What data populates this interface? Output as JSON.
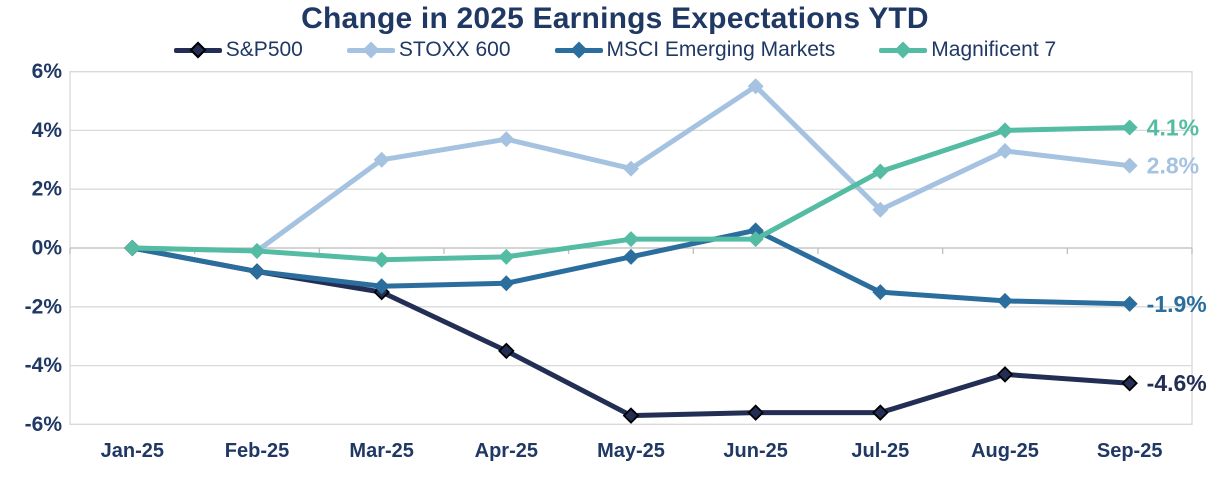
{
  "chart_data": {
    "type": "line",
    "title": "Change in 2025 Earnings Expectations YTD",
    "x": [
      "Jan-25",
      "Feb-25",
      "Mar-25",
      "Apr-25",
      "May-25",
      "Jun-25",
      "Jul-25",
      "Aug-25",
      "Sep-25"
    ],
    "series": [
      {
        "name": "S&P500",
        "color": "#232e54",
        "marker_outline": "#000000",
        "values": [
          0.0,
          -0.8,
          -1.5,
          -3.5,
          -5.7,
          -5.6,
          -5.6,
          -4.3,
          -4.6
        ],
        "end_label": "-4.6%"
      },
      {
        "name": "STOXX 600",
        "color": "#a6c2e1",
        "marker_outline": null,
        "values": [
          0.0,
          -0.1,
          3.0,
          3.7,
          2.7,
          5.5,
          1.3,
          3.3,
          2.8
        ],
        "end_label": "2.8%"
      },
      {
        "name": "MSCI Emerging Markets",
        "color": "#2b6e9e",
        "marker_outline": null,
        "values": [
          0.0,
          -0.8,
          -1.3,
          -1.2,
          -0.3,
          0.6,
          -1.5,
          -1.8,
          -1.9
        ],
        "end_label": "-1.9%"
      },
      {
        "name": "Magnificent 7",
        "color": "#54bca2",
        "marker_outline": null,
        "values": [
          0.0,
          -0.1,
          -0.4,
          -0.3,
          0.3,
          0.3,
          2.6,
          4.0,
          4.1
        ],
        "end_label": "4.1%"
      }
    ],
    "y_ticks": [
      "6%",
      "4%",
      "2%",
      "0%",
      "-2%",
      "-4%",
      "-6%"
    ],
    "y_tick_values": [
      6,
      4,
      2,
      0,
      -2,
      -4,
      -6
    ],
    "ylim": [
      -6,
      6
    ],
    "xlabel": "",
    "ylabel": "",
    "grid": true,
    "legend_position": "top",
    "category_axis_at_zero": true
  },
  "colors": {
    "title_text": "#1f3864",
    "axis_text": "#1f3864",
    "gridline": "#d9d9d9",
    "axis_line": "#bfbfbf",
    "background": "#ffffff"
  }
}
